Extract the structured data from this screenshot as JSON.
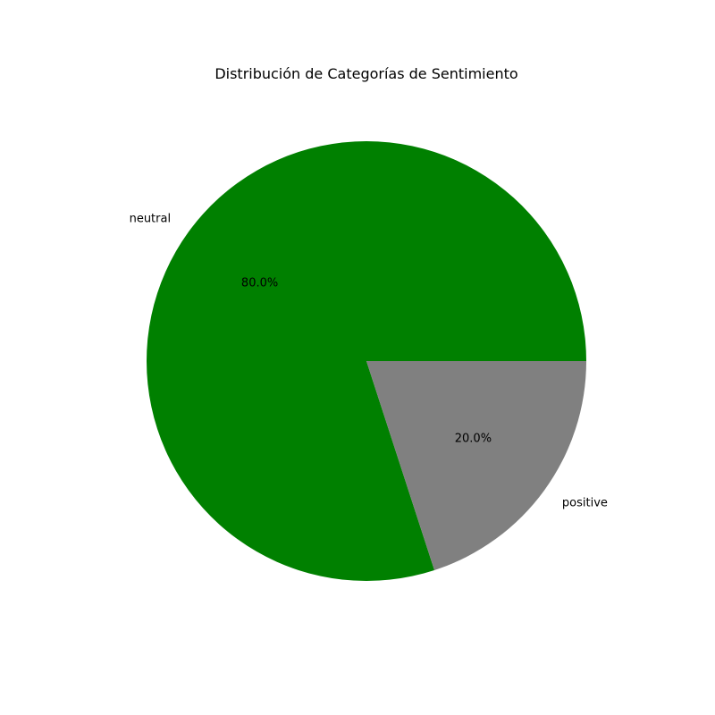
{
  "chart_data": {
    "type": "pie",
    "title": "Distribución de Categorías de Sentimiento",
    "slices": [
      {
        "label": "neutral",
        "value": 80.0,
        "pct_label": "80.0%",
        "color": "#008000"
      },
      {
        "label": "positive",
        "value": 20.0,
        "pct_label": "20.0%",
        "color": "#808080"
      }
    ],
    "start_angle_deg": 0,
    "direction": "counterclockwise",
    "legend": "none"
  }
}
